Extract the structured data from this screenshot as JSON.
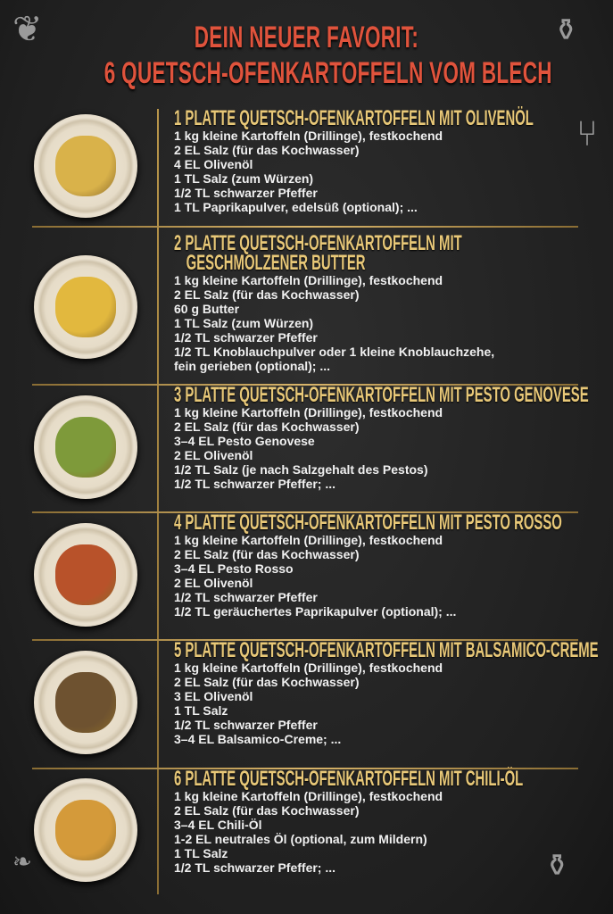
{
  "title": {
    "line1": "DEIN NEUER FAVORIT:",
    "line2": "6 QUETSCH-OFENKARTOFFELN VOM BLECH"
  },
  "colors": {
    "title": "#e0533c",
    "heading": "#e8c878",
    "text": "#f0f0f0",
    "divider": "#d9b56a",
    "background": "#232323"
  },
  "recipes": [
    {
      "heading": [
        "1 PLATTE QUETSCH-OFENKARTOFFELN MIT OLIVENÖL"
      ],
      "food_color": "#d9b24a",
      "items": [
        "1 kg kleine Kartoffeln (Drillinge), festkochend",
        "2 EL Salz (für das Kochwasser)",
        "4 EL Olivenöl",
        "1 TL Salz (zum Würzen)",
        "1/2 TL schwarzer Pfeffer",
        "1 TL Paprikapulver, edelsüß (optional); ..."
      ]
    },
    {
      "heading": [
        "2 PLATTE QUETSCH-OFENKARTOFFELN MIT",
        "GESCHMOLZENER BUTTER"
      ],
      "food_color": "#e2b83e",
      "items": [
        "1 kg kleine Kartoffeln (Drillinge), festkochend",
        "2 EL Salz (für das Kochwasser)",
        "60 g Butter",
        "1 TL Salz (zum Würzen)",
        "1/2 TL schwarzer Pfeffer",
        "1/2 TL Knoblauchpulver oder 1 kleine Knoblauchzehe,",
        " fein gerieben (optional); ..."
      ]
    },
    {
      "heading": [
        "3 PLATTE QUETSCH-OFENKARTOFFELN MIT PESTO GENOVESE"
      ],
      "food_color": "#7e9a3a",
      "items": [
        "1 kg kleine Kartoffeln (Drillinge), festkochend",
        "2 EL Salz (für das Kochwasser)",
        "3–4 EL Pesto Genovese",
        "2 EL Olivenöl",
        "1/2 TL Salz (je nach Salzgehalt des Pestos)",
        "1/2 TL schwarzer Pfeffer; ..."
      ]
    },
    {
      "heading": [
        "4 PLATTE QUETSCH-OFENKARTOFFELN MIT PESTO ROSSO"
      ],
      "food_color": "#b8522a",
      "items": [
        "1 kg kleine Kartoffeln (Drillinge), festkochend",
        "2 EL Salz (für das Kochwasser)",
        "3–4 EL Pesto Rosso",
        "2 EL Olivenöl",
        "1/2 TL schwarzer Pfeffer",
        "1/2 TL geräuchertes Paprikapulver (optional); ..."
      ]
    },
    {
      "heading": [
        "5 PLATTE QUETSCH-OFENKARTOFFELN MIT BALSAMICO-CREME"
      ],
      "food_color": "#6e5230",
      "items": [
        "1 kg kleine Kartoffeln (Drillinge), festkochend",
        "2 EL Salz (für das Kochwasser)",
        "3 EL Olivenöl",
        "1 TL Salz",
        "1/2 TL schwarzer Pfeffer",
        "3–4 EL Balsamico-Creme; ..."
      ]
    },
    {
      "heading": [
        "6 PLATTE QUETSCH-OFENKARTOFFELN MIT CHILI-ÖL"
      ],
      "food_color": "#d49a3a",
      "items": [
        "1 kg kleine Kartoffeln (Drillinge), festkochend",
        "2 EL Salz (für das Kochwasser)",
        "3–4 EL Chili-Öl",
        "1-2 EL neutrales Öl (optional, zum Mildern)",
        "1 TL Salz",
        "1/2 TL schwarzer Pfeffer; ..."
      ]
    }
  ],
  "decorations": [
    "herb-icon",
    "spice-jar-icon",
    "fork-icon",
    "potato-icon"
  ]
}
